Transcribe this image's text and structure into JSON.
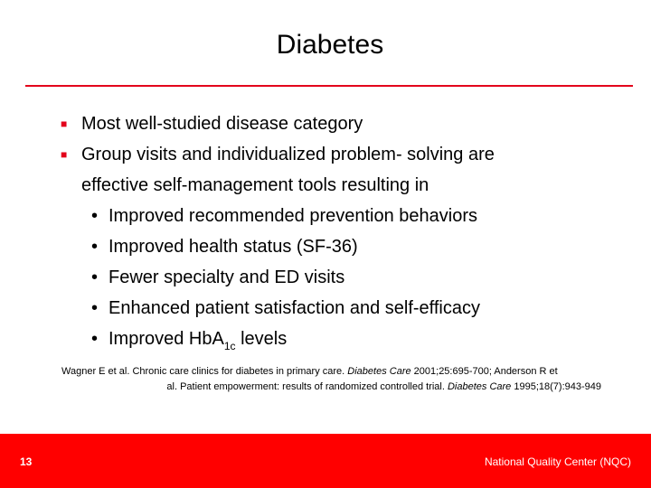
{
  "slide": {
    "title": "Diabetes",
    "bullets": [
      {
        "text": "Most well-studied disease category"
      },
      {
        "text_line1": "Group visits and individualized problem- solving are",
        "text_line2": "effective self-management tools resulting in"
      }
    ],
    "sub_bullets": [
      "Improved recommended prevention behaviors",
      "Improved health status (SF-36)",
      "Fewer specialty and ED visits",
      "Enhanced patient satisfaction and self-efficacy"
    ],
    "hba1c_item": {
      "prefix": "Improved Hb",
      "a": "A",
      "subscript": "1c",
      "suffix": " levels"
    },
    "references": {
      "ref1_authors": "Wagner E et al. Chronic care clinics for diabetes in primary care. ",
      "ref1_journal": "Diabetes Care",
      "ref1_details": " 2001;25:695-700; Anderson R et",
      "ref2_authors": "al. Patient empowerment: results of randomized controlled trial. ",
      "ref2_journal": "Diabetes Care",
      "ref2_details": " 1995;18(7):943-949"
    },
    "colors": {
      "accent": "#e3001b",
      "footer": "#ff0000"
    }
  },
  "footer": {
    "page_number": "13",
    "organization": "National Quality Center (NQC)"
  }
}
